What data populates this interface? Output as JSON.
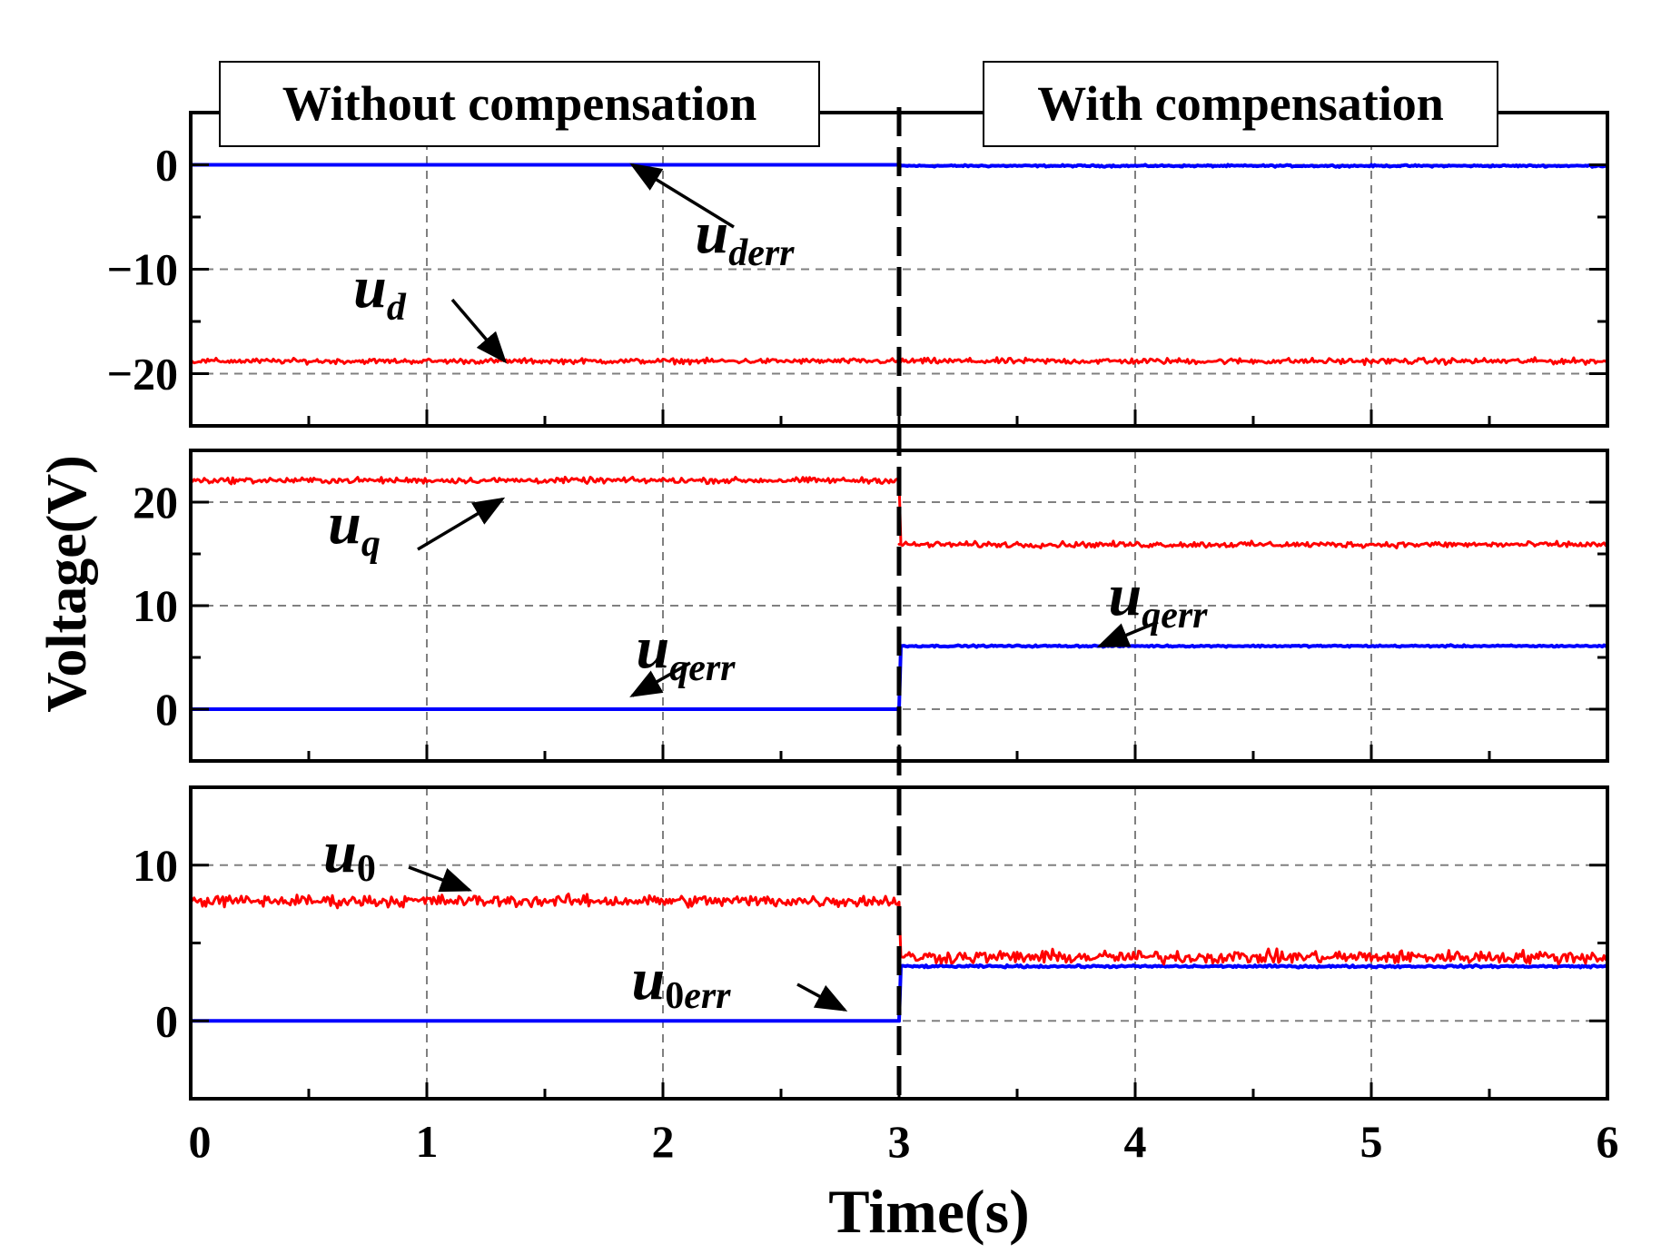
{
  "chart_data": {
    "type": "line",
    "xlabel": "Time(s)",
    "ylabel": "Voltage(V)",
    "xlim": [
      0,
      6
    ],
    "xticks": [
      "0",
      "1",
      "2",
      "3",
      "4",
      "5",
      "6"
    ],
    "switch_time": 3,
    "region_labels": {
      "left": "Without compensation",
      "right": "With compensation"
    },
    "colors": {
      "red": "#ff0000",
      "blue": "#0000ff",
      "grid": "#808080"
    },
    "panels": [
      {
        "id": "d-axis",
        "ylim": [
          -25,
          5
        ],
        "yticks": [
          {
            "value": 0,
            "label": "0"
          },
          {
            "value": -10,
            "label": "−10"
          },
          {
            "value": -20,
            "label": "−20"
          }
        ],
        "series": [
          {
            "name": "u_d",
            "color": "red",
            "segments": [
              {
                "t": [
                  0,
                  3
                ],
                "v": -18.8,
                "noise": 0.35
              },
              {
                "t": [
                  3,
                  6
                ],
                "v": -18.8,
                "noise": 0.4
              }
            ]
          },
          {
            "name": "u_derr",
            "color": "blue",
            "segments": [
              {
                "t": [
                  0,
                  3
                ],
                "v": 0,
                "noise": 0
              },
              {
                "t": [
                  3,
                  6
                ],
                "v": -0.1,
                "noise": 0.12
              }
            ]
          }
        ],
        "annotations": [
          {
            "main": "u",
            "sub": "derr",
            "arrow": {
              "t": 1.87,
              "v": 0
            }
          },
          {
            "main": "u",
            "sub": "d",
            "arrow": {
              "t": 1.33,
              "v": -18.8
            }
          }
        ]
      },
      {
        "id": "q-axis",
        "ylim": [
          -5,
          25
        ],
        "yticks": [
          {
            "value": 20,
            "label": "20"
          },
          {
            "value": 10,
            "label": "10"
          },
          {
            "value": 0,
            "label": "0"
          }
        ],
        "series": [
          {
            "name": "u_q",
            "color": "red",
            "segments": [
              {
                "t": [
                  0,
                  3
                ],
                "v": 22.1,
                "noise": 0.4
              },
              {
                "t": [
                  3,
                  6
                ],
                "v": 15.9,
                "noise": 0.4
              }
            ]
          },
          {
            "name": "u_qerr",
            "color": "blue",
            "segments": [
              {
                "t": [
                  0,
                  3
                ],
                "v": 0,
                "noise": 0
              },
              {
                "t": [
                  3,
                  6
                ],
                "v": 6.1,
                "noise": 0.12
              }
            ]
          }
        ],
        "annotations": [
          {
            "main": "u",
            "sub": "q",
            "arrow": {
              "t": 1.32,
              "v": 20.3
            }
          },
          {
            "main": "u",
            "sub": "qerr",
            "arrow": {
              "t": 1.87,
              "v": 1.3
            }
          },
          {
            "main": "u",
            "sub": "qerr",
            "arrow": {
              "t": 3.85,
              "v": 6.1
            }
          }
        ]
      },
      {
        "id": "zero-axis",
        "ylim": [
          -5,
          15
        ],
        "yticks": [
          {
            "value": 10,
            "label": "10"
          },
          {
            "value": 0,
            "label": "0"
          }
        ],
        "series": [
          {
            "name": "u_0",
            "color": "red",
            "segments": [
              {
                "t": [
                  0,
                  3
                ],
                "v": 7.7,
                "noise": 0.55
              },
              {
                "t": [
                  3,
                  6
                ],
                "v": 4.1,
                "noise": 0.6
              }
            ]
          },
          {
            "name": "u_0err",
            "color": "blue",
            "segments": [
              {
                "t": [
                  0,
                  3
                ],
                "v": 0,
                "noise": 0
              },
              {
                "t": [
                  3,
                  6
                ],
                "v": 3.5,
                "noise": 0.1
              }
            ]
          }
        ],
        "annotations": [
          {
            "main": "u",
            "sub": "0",
            "arrow": {
              "t": 1.18,
              "v": 8.4
            }
          },
          {
            "main": "u",
            "sub": "0err",
            "arrow": {
              "t": 2.77,
              "v": 0.7
            }
          }
        ]
      }
    ]
  }
}
